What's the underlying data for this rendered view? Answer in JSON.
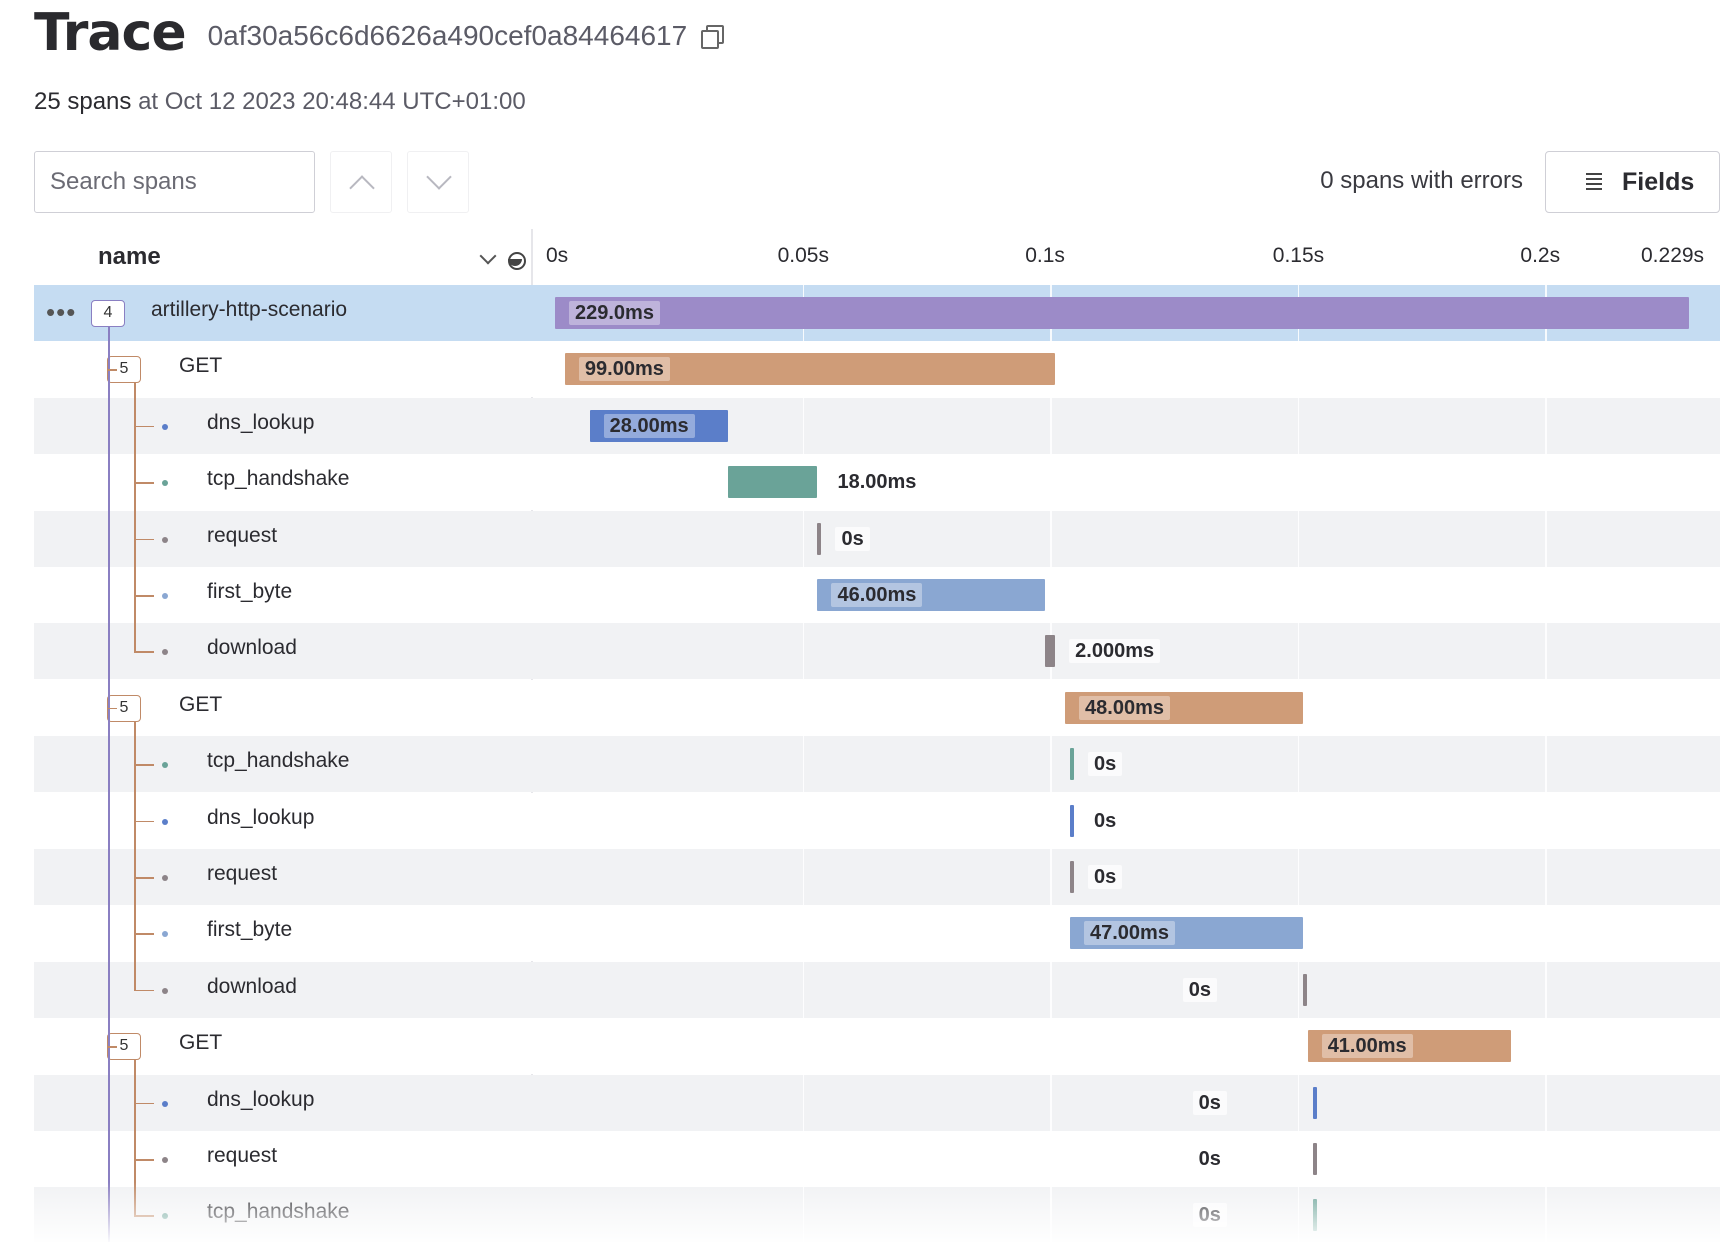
{
  "header": {
    "title": "Trace",
    "trace_id": "0af30a56c6d6626a490cef0a84464617",
    "copy_icon": "copy-icon"
  },
  "summary": {
    "span_count": "25 spans",
    "at_text": "at Oct 12 2023 20:48:44 UTC+01:00"
  },
  "toolbar": {
    "search_placeholder": "Search spans",
    "prev_icon": "chevron-up-icon",
    "next_icon": "chevron-down-icon",
    "errors_text": "0 spans with errors",
    "fields_label": "Fields",
    "fields_icon": "list-icon"
  },
  "table": {
    "name_header": "name",
    "axis_ticks": [
      {
        "label": "0s",
        "value": 0
      },
      {
        "label": "0.05s",
        "value": 0.05
      },
      {
        "label": "0.1s",
        "value": 0.1
      },
      {
        "label": "0.15s",
        "value": 0.15
      },
      {
        "label": "0.2s",
        "value": 0.2
      },
      {
        "label": "0.229s",
        "value": 0.229
      }
    ],
    "gridline_values": [
      0.05,
      0.1,
      0.15,
      0.2
    ],
    "max_ms": 229
  },
  "colors": {
    "root": "#9c8bc8",
    "get": "#cf9c78",
    "dns_lookup": "#5b7ec9",
    "tcp_handshake": "#6aa398",
    "request": "#8d8488",
    "first_byte": "#8aa7d2",
    "download": "#8d8488",
    "root_border": "#8a7fc2",
    "branch": "#c08a67"
  },
  "spans": [
    {
      "name": "artillery-http-scenario",
      "level": 0,
      "children": "4",
      "start_ms": 0,
      "dur_ms": 229,
      "label": "229.0ms",
      "kind": "root",
      "selected": true
    },
    {
      "name": "GET",
      "level": 1,
      "children": "5",
      "start_ms": 2,
      "dur_ms": 99,
      "label": "99.00ms",
      "kind": "get"
    },
    {
      "name": "dns_lookup",
      "level": 2,
      "start_ms": 7,
      "dur_ms": 28,
      "label": "28.00ms",
      "kind": "dns_lookup"
    },
    {
      "name": "tcp_handshake",
      "level": 2,
      "start_ms": 35,
      "dur_ms": 18,
      "label": "18.00ms",
      "kind": "tcp_handshake"
    },
    {
      "name": "request",
      "level": 2,
      "start_ms": 53,
      "dur_ms": 0,
      "label": "0s",
      "kind": "request"
    },
    {
      "name": "first_byte",
      "level": 2,
      "start_ms": 53,
      "dur_ms": 46,
      "label": "46.00ms",
      "kind": "first_byte"
    },
    {
      "name": "download",
      "level": 2,
      "start_ms": 99,
      "dur_ms": 2,
      "label": "2.000ms",
      "kind": "download",
      "last": true
    },
    {
      "name": "GET",
      "level": 1,
      "children": "5",
      "start_ms": 103,
      "dur_ms": 48,
      "label": "48.00ms",
      "kind": "get"
    },
    {
      "name": "tcp_handshake",
      "level": 2,
      "start_ms": 104,
      "dur_ms": 0,
      "label": "0s",
      "kind": "tcp_handshake"
    },
    {
      "name": "dns_lookup",
      "level": 2,
      "start_ms": 104,
      "dur_ms": 0,
      "label": "0s",
      "kind": "dns_lookup"
    },
    {
      "name": "request",
      "level": 2,
      "start_ms": 104,
      "dur_ms": 0,
      "label": "0s",
      "kind": "request"
    },
    {
      "name": "first_byte",
      "level": 2,
      "start_ms": 104,
      "dur_ms": 47,
      "label": "47.00ms",
      "kind": "first_byte"
    },
    {
      "name": "download",
      "level": 2,
      "start_ms": 151,
      "dur_ms": 0,
      "label": "0s",
      "kind": "download",
      "label_left": true,
      "last": true
    },
    {
      "name": "GET",
      "level": 1,
      "children": "5",
      "start_ms": 152,
      "dur_ms": 41,
      "label": "41.00ms",
      "kind": "get"
    },
    {
      "name": "dns_lookup",
      "level": 2,
      "start_ms": 153,
      "dur_ms": 0,
      "label": "0s",
      "kind": "dns_lookup",
      "label_left": true
    },
    {
      "name": "request",
      "level": 2,
      "start_ms": 153,
      "dur_ms": 0,
      "label": "0s",
      "kind": "request",
      "label_left": true
    },
    {
      "name": "tcp_handshake",
      "level": 2,
      "start_ms": 153,
      "dur_ms": 0,
      "label": "0s",
      "kind": "tcp_handshake",
      "label_left": true
    }
  ]
}
